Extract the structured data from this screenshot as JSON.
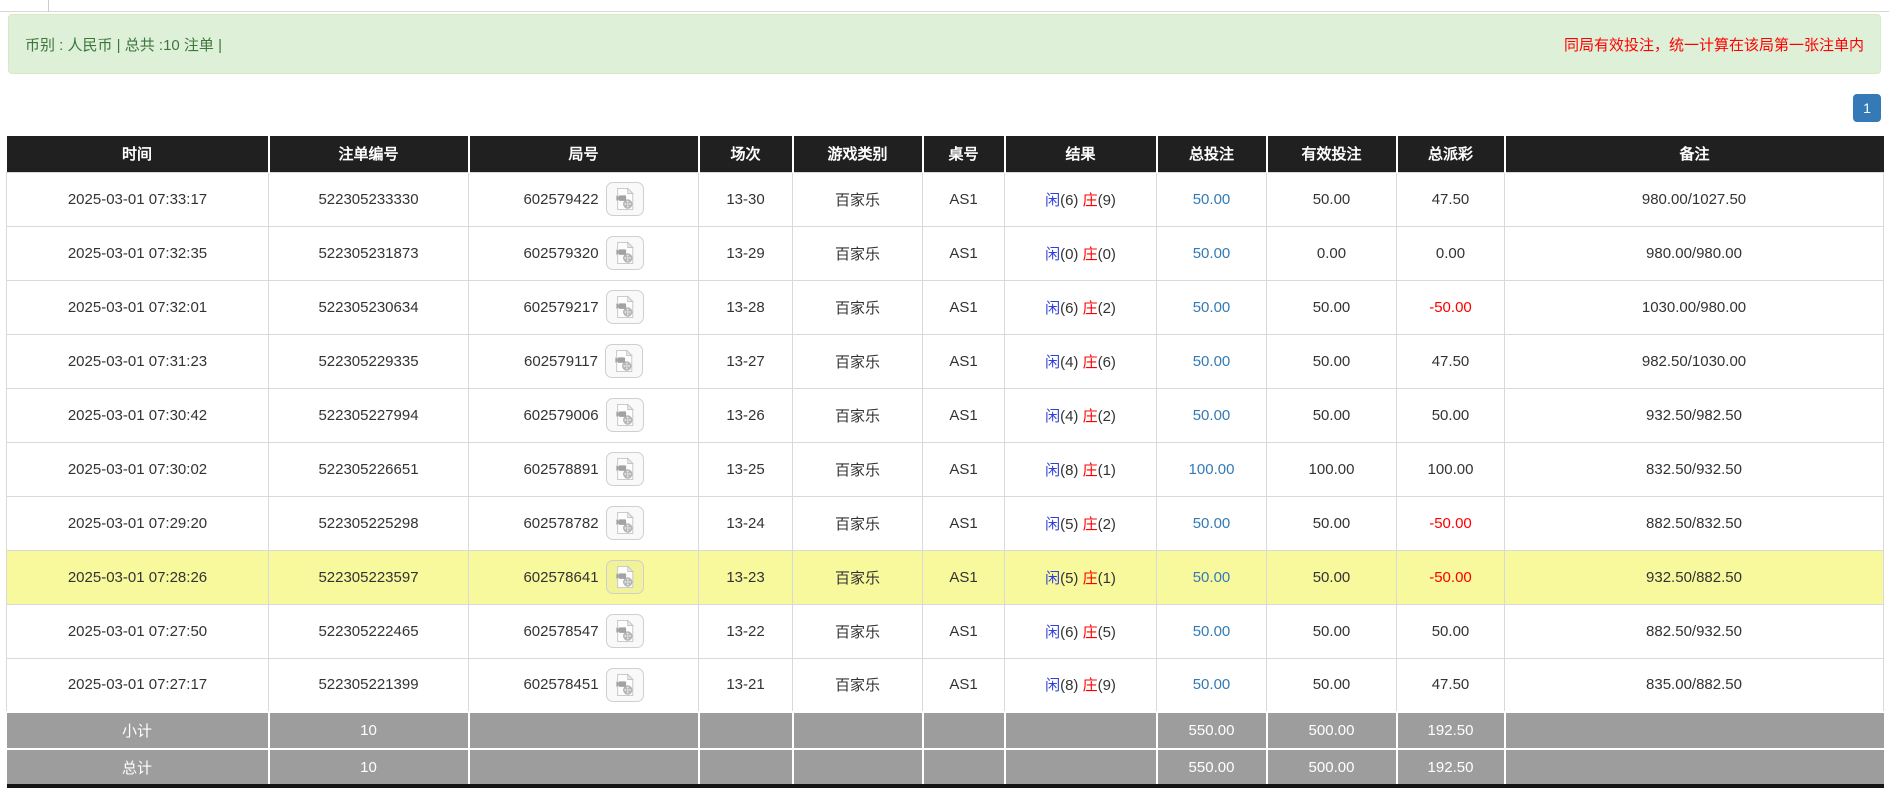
{
  "summary_bar": {
    "left_text": "币别 : 人民币 | 总共 :10 注单 |",
    "right_notice": "同局有效投注，统一计算在该局第一张注单内"
  },
  "pagination": {
    "current_page": "1"
  },
  "table": {
    "columns": [
      "时间",
      "注单编号",
      "局号",
      "场次",
      "游戏类别",
      "桌号",
      "结果",
      "总投注",
      "有效投注",
      "总派彩",
      "备注"
    ],
    "result_labels": {
      "player": "闲",
      "banker": "庄"
    },
    "icons": {
      "round_replay": "video-replay-icon"
    },
    "rows": [
      {
        "time": "2025-03-01 07:33:17",
        "bet_no": "522305233330",
        "round_no": "602579422",
        "session": "13-30",
        "game": "百家乐",
        "table_no": "AS1",
        "player_pts": "6",
        "banker_pts": "9",
        "total_bet": "50.00",
        "valid_bet": "50.00",
        "payout": "47.50",
        "remark": "980.00/1027.50",
        "highlight": false
      },
      {
        "time": "2025-03-01 07:32:35",
        "bet_no": "522305231873",
        "round_no": "602579320",
        "session": "13-29",
        "game": "百家乐",
        "table_no": "AS1",
        "player_pts": "0",
        "banker_pts": "0",
        "total_bet": "50.00",
        "valid_bet": "0.00",
        "payout": "0.00",
        "remark": "980.00/980.00",
        "highlight": false
      },
      {
        "time": "2025-03-01 07:32:01",
        "bet_no": "522305230634",
        "round_no": "602579217",
        "session": "13-28",
        "game": "百家乐",
        "table_no": "AS1",
        "player_pts": "6",
        "banker_pts": "2",
        "total_bet": "50.00",
        "valid_bet": "50.00",
        "payout": "-50.00",
        "remark": "1030.00/980.00",
        "highlight": false
      },
      {
        "time": "2025-03-01 07:31:23",
        "bet_no": "522305229335",
        "round_no": "602579117",
        "session": "13-27",
        "game": "百家乐",
        "table_no": "AS1",
        "player_pts": "4",
        "banker_pts": "6",
        "total_bet": "50.00",
        "valid_bet": "50.00",
        "payout": "47.50",
        "remark": "982.50/1030.00",
        "highlight": false
      },
      {
        "time": "2025-03-01 07:30:42",
        "bet_no": "522305227994",
        "round_no": "602579006",
        "session": "13-26",
        "game": "百家乐",
        "table_no": "AS1",
        "player_pts": "4",
        "banker_pts": "2",
        "total_bet": "50.00",
        "valid_bet": "50.00",
        "payout": "50.00",
        "remark": "932.50/982.50",
        "highlight": false
      },
      {
        "time": "2025-03-01 07:30:02",
        "bet_no": "522305226651",
        "round_no": "602578891",
        "session": "13-25",
        "game": "百家乐",
        "table_no": "AS1",
        "player_pts": "8",
        "banker_pts": "1",
        "total_bet": "100.00",
        "valid_bet": "100.00",
        "payout": "100.00",
        "remark": "832.50/932.50",
        "highlight": false
      },
      {
        "time": "2025-03-01 07:29:20",
        "bet_no": "522305225298",
        "round_no": "602578782",
        "session": "13-24",
        "game": "百家乐",
        "table_no": "AS1",
        "player_pts": "5",
        "banker_pts": "2",
        "total_bet": "50.00",
        "valid_bet": "50.00",
        "payout": "-50.00",
        "remark": "882.50/832.50",
        "highlight": false
      },
      {
        "time": "2025-03-01 07:28:26",
        "bet_no": "522305223597",
        "round_no": "602578641",
        "session": "13-23",
        "game": "百家乐",
        "table_no": "AS1",
        "player_pts": "5",
        "banker_pts": "1",
        "total_bet": "50.00",
        "valid_bet": "50.00",
        "payout": "-50.00",
        "remark": "932.50/882.50",
        "highlight": true
      },
      {
        "time": "2025-03-01 07:27:50",
        "bet_no": "522305222465",
        "round_no": "602578547",
        "session": "13-22",
        "game": "百家乐",
        "table_no": "AS1",
        "player_pts": "6",
        "banker_pts": "5",
        "total_bet": "50.00",
        "valid_bet": "50.00",
        "payout": "50.00",
        "remark": "882.50/932.50",
        "highlight": false
      },
      {
        "time": "2025-03-01 07:27:17",
        "bet_no": "522305221399",
        "round_no": "602578451",
        "session": "13-21",
        "game": "百家乐",
        "table_no": "AS1",
        "player_pts": "8",
        "banker_pts": "9",
        "total_bet": "50.00",
        "valid_bet": "50.00",
        "payout": "47.50",
        "remark": "835.00/882.50",
        "highlight": false
      }
    ],
    "footer": [
      {
        "label": "小计",
        "count": "10",
        "total_bet": "550.00",
        "valid_bet": "500.00",
        "payout": "192.50"
      },
      {
        "label": "总计",
        "count": "10",
        "total_bet": "550.00",
        "valid_bet": "500.00",
        "payout": "192.50"
      }
    ]
  },
  "colors": {
    "alert_bg": "#dff0d8",
    "alert_border": "#d6e9c6",
    "alert_text": "#3c763d",
    "notice_red": "#ff0000",
    "pagination_blue": "#337ab7",
    "header_bg": "#202020",
    "link_blue": "#337ab7",
    "player_blue": "#2d3fd9",
    "banker_red": "#ff0000",
    "negative_red": "#ff0000",
    "highlight_yellow": "#f8f89c",
    "footer_gray": "#9d9d9d"
  }
}
